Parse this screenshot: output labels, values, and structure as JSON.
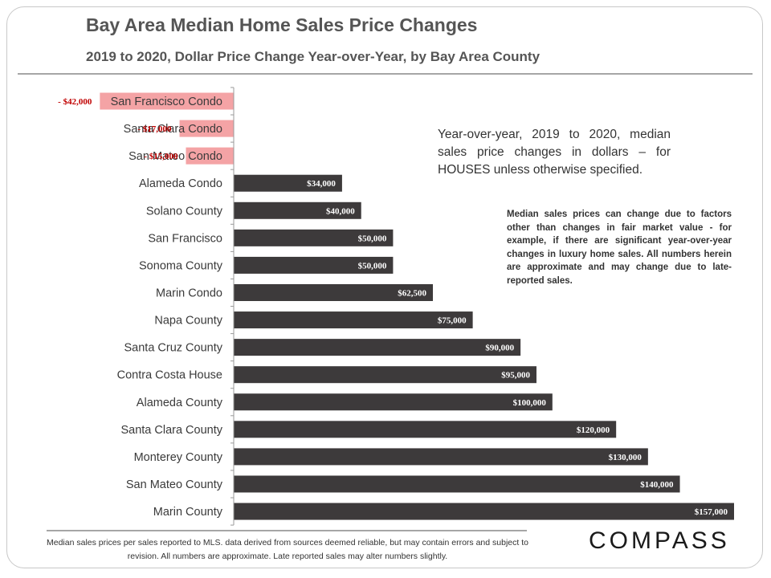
{
  "header": {
    "title": "Bay Area Median Home Sales Price Changes",
    "subtitle": "2019 to 2020, Dollar Price Change Year-over-Year, by Bay Area County"
  },
  "notes": {
    "main": "Year-over-year, 2019 to 2020, median sales price changes in dollars – for HOUSES unless otherwise specified.",
    "small": "Median sales prices can change due to factors other than changes in fair market value - for example, if there are significant year-over-year changes in luxury home sales. All numbers herein are approximate and may change due to late-reported sales."
  },
  "footer": {
    "text": "Median sales prices per sales reported to MLS. data derived from sources deemed reliable, but may contain errors and subject to revision.  All numbers are approximate. Late reported sales may alter numbers slightly."
  },
  "logo": {
    "text": "COMPASS"
  },
  "colors": {
    "negative_bar": "#f4a3a5",
    "positive_bar": "#3d3a3b",
    "negative_label": "#c00000",
    "positive_label": "#ffffff",
    "category_text": "#3a3a3a"
  },
  "chart_data": {
    "type": "bar",
    "orientation": "horizontal",
    "categories": [
      "San Francisco Condo",
      "Santa Clara Condo",
      "San Mateo Condo",
      "Alameda Condo",
      "Solano County",
      "San Francisco",
      "Sonoma County",
      "Marin Condo",
      "Napa County",
      "Santa Cruz County",
      "Contra Costa House",
      "Alameda County",
      "Santa Clara County",
      "Monterey County",
      "San Mateo County",
      "Marin County"
    ],
    "values": [
      -42000,
      -17000,
      -15000,
      34000,
      40000,
      50000,
      50000,
      62500,
      75000,
      90000,
      95000,
      100000,
      120000,
      130000,
      140000,
      157000
    ],
    "data_labels": [
      "- $42,000",
      "- $17,000",
      "- $15,000",
      "$34,000",
      "$40,000",
      "$50,000",
      "$50,000",
      "$62,500",
      "$75,000",
      "$90,000",
      "$95,000",
      "$100,000",
      "$120,000",
      "$130,000",
      "$140,000",
      "$157,000"
    ],
    "xlim": [
      -42000,
      157000
    ],
    "grid": false,
    "legend": "none"
  }
}
